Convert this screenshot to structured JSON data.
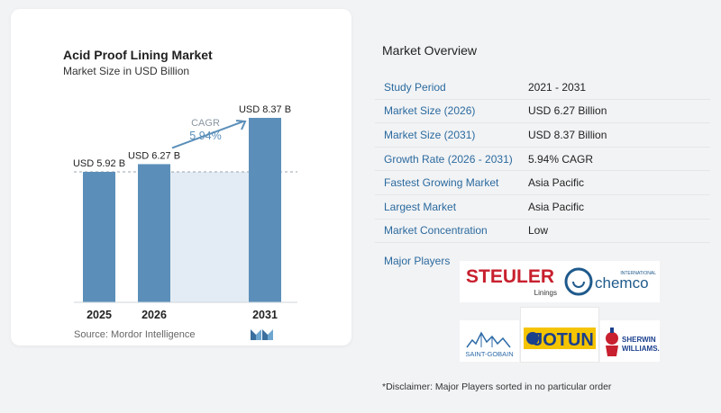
{
  "card": {
    "title": "Acid Proof Lining Market",
    "subtitle": "Market Size in USD Billion",
    "source": "Source: Mordor Intelligence"
  },
  "chart_data": {
    "type": "bar",
    "categories": [
      "2025",
      "2026",
      "2031"
    ],
    "values": [
      5.92,
      6.27,
      8.37
    ],
    "value_labels": [
      "USD 5.92 B",
      "USD 6.27 B",
      "USD 8.37 B"
    ],
    "ylim": [
      0,
      8.9
    ],
    "cagr_label": "CAGR",
    "cagr_value": "5.94%",
    "bar_color": "#5b8fb9",
    "shade_color": "#e3ecf4"
  },
  "overview": {
    "title": "Market Overview",
    "rows": [
      {
        "label": "Study Period",
        "value": "2021 - 2031"
      },
      {
        "label": "Market Size (2026)",
        "value": "USD 6.27 Billion"
      },
      {
        "label": "Market Size (2031)",
        "value": "USD 8.37 Billion"
      },
      {
        "label": "Growth Rate (2026 - 2031)",
        "value": "5.94% CAGR"
      },
      {
        "label": "Fastest Growing Market",
        "value": "Asia Pacific"
      },
      {
        "label": "Largest Market",
        "value": "Asia Pacific"
      },
      {
        "label": "Market Concentration",
        "value": "Low"
      }
    ],
    "players_label": "Major Players",
    "players": {
      "steuler": "STEULER",
      "steuler_sub": "Linings",
      "chemco": "chemco",
      "chemco_top": "INTERNATIONAL",
      "saint_gobain": "SAINT-GOBAIN",
      "jotun": "JOTUN",
      "sherwin": "SHERWIN",
      "williams": "WILLIAMS."
    },
    "disclaimer": "*Disclaimer: Major Players sorted in no particular order"
  }
}
